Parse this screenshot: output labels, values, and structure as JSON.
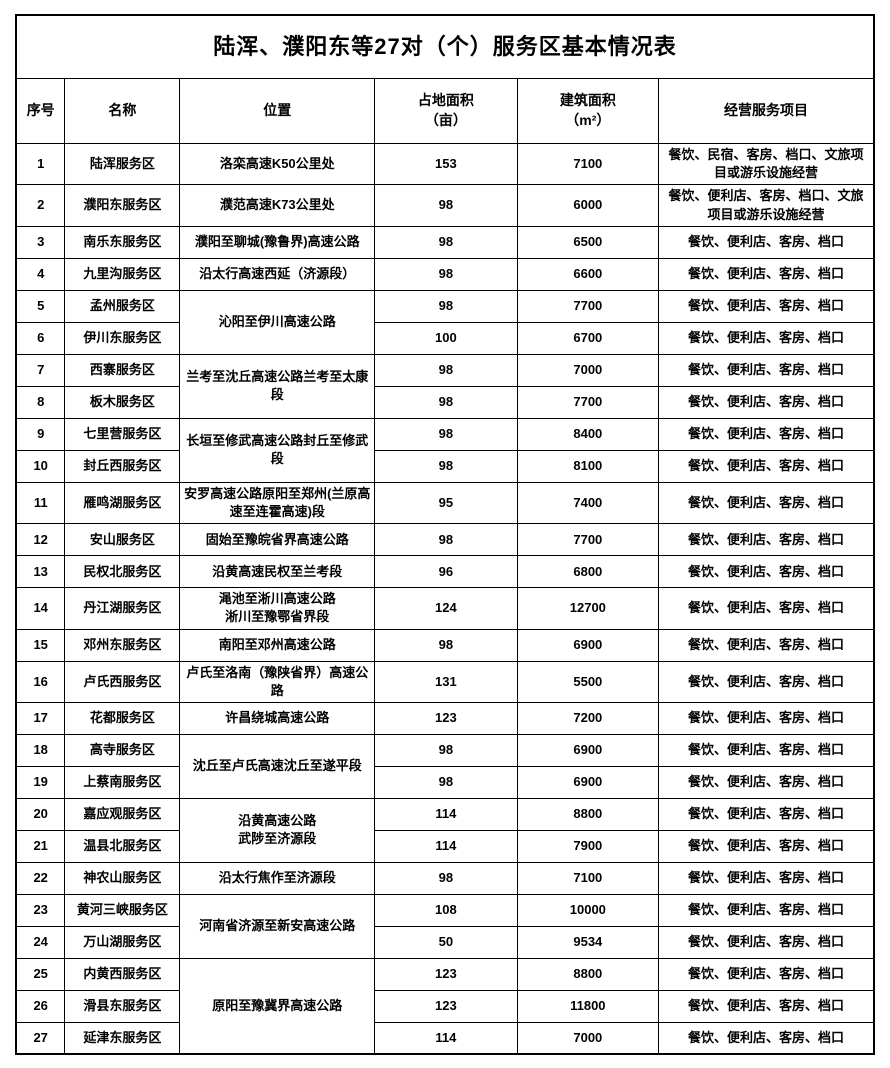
{
  "table": {
    "title": "陆浑、濮阳东等27对（个）服务区基本情况表",
    "headers": [
      "序号",
      "名称",
      "位置",
      "占地面积\n（亩）",
      "建筑面积\n（m²）",
      "经营服务项目"
    ],
    "rows": [
      {
        "no": "1",
        "name": "陆浑服务区",
        "location": "洛栾高速K50公里处",
        "location_rowspan": 1,
        "land": "153",
        "building": "7100",
        "services": "餐饮、民宿、客房、档口、文旅项目或游乐设施经营"
      },
      {
        "no": "2",
        "name": "濮阳东服务区",
        "location": "濮范高速K73公里处",
        "location_rowspan": 1,
        "land": "98",
        "building": "6000",
        "services": "餐饮、便利店、客房、档口、文旅项目或游乐设施经营"
      },
      {
        "no": "3",
        "name": "南乐东服务区",
        "location": "濮阳至聊城(豫鲁界)高速公路",
        "location_rowspan": 1,
        "land": "98",
        "building": "6500",
        "services": "餐饮、便利店、客房、档口"
      },
      {
        "no": "4",
        "name": "九里沟服务区",
        "location": "沿太行高速西延（济源段）",
        "location_rowspan": 1,
        "land": "98",
        "building": "6600",
        "services": "餐饮、便利店、客房、档口"
      },
      {
        "no": "5",
        "name": "孟州服务区",
        "location": "沁阳至伊川高速公路",
        "location_rowspan": 2,
        "land": "98",
        "building": "7700",
        "services": "餐饮、便利店、客房、档口"
      },
      {
        "no": "6",
        "name": "伊川东服务区",
        "location": null,
        "land": "100",
        "building": "6700",
        "services": "餐饮、便利店、客房、档口"
      },
      {
        "no": "7",
        "name": "西寨服务区",
        "location": "兰考至沈丘高速公路兰考至太康段",
        "location_rowspan": 2,
        "land": "98",
        "building": "7000",
        "services": "餐饮、便利店、客房、档口"
      },
      {
        "no": "8",
        "name": "板木服务区",
        "location": null,
        "land": "98",
        "building": "7700",
        "services": "餐饮、便利店、客房、档口"
      },
      {
        "no": "9",
        "name": "七里营服务区",
        "location": "长垣至修武高速公路封丘至修武段",
        "location_rowspan": 2,
        "land": "98",
        "building": "8400",
        "services": "餐饮、便利店、客房、档口"
      },
      {
        "no": "10",
        "name": "封丘西服务区",
        "location": null,
        "land": "98",
        "building": "8100",
        "services": "餐饮、便利店、客房、档口"
      },
      {
        "no": "11",
        "name": "雁鸣湖服务区",
        "location": "安罗高速公路原阳至郑州(兰原高速至连霍高速)段",
        "location_rowspan": 1,
        "land": "95",
        "building": "7400",
        "services": "餐饮、便利店、客房、档口"
      },
      {
        "no": "12",
        "name": "安山服务区",
        "location": "固始至豫皖省界高速公路",
        "location_rowspan": 1,
        "land": "98",
        "building": "7700",
        "services": "餐饮、便利店、客房、档口"
      },
      {
        "no": "13",
        "name": "民权北服务区",
        "location": "沿黄高速民权至兰考段",
        "location_rowspan": 1,
        "land": "96",
        "building": "6800",
        "services": "餐饮、便利店、客房、档口"
      },
      {
        "no": "14",
        "name": "丹江湖服务区",
        "location": "渑池至淅川高速公路\n淅川至豫鄂省界段",
        "location_rowspan": 1,
        "land": "124",
        "building": "12700",
        "services": "餐饮、便利店、客房、档口"
      },
      {
        "no": "15",
        "name": "邓州东服务区",
        "location": "南阳至邓州高速公路",
        "location_rowspan": 1,
        "land": "98",
        "building": "6900",
        "services": "餐饮、便利店、客房、档口"
      },
      {
        "no": "16",
        "name": "卢氏西服务区",
        "location": "卢氏至洛南（豫陕省界）高速公路",
        "location_rowspan": 1,
        "land": "131",
        "building": "5500",
        "services": "餐饮、便利店、客房、档口"
      },
      {
        "no": "17",
        "name": "花都服务区",
        "location": "许昌绕城高速公路",
        "location_rowspan": 1,
        "land": "123",
        "building": "7200",
        "services": "餐饮、便利店、客房、档口"
      },
      {
        "no": "18",
        "name": "高寺服务区",
        "location": "沈丘至卢氏高速沈丘至遂平段",
        "location_rowspan": 2,
        "land": "98",
        "building": "6900",
        "services": "餐饮、便利店、客房、档口"
      },
      {
        "no": "19",
        "name": "上蔡南服务区",
        "location": null,
        "land": "98",
        "building": "6900",
        "services": "餐饮、便利店、客房、档口"
      },
      {
        "no": "20",
        "name": "嘉应观服务区",
        "location": "沿黄高速公路\n武陟至济源段",
        "location_rowspan": 2,
        "land": "114",
        "building": "8800",
        "services": "餐饮、便利店、客房、档口"
      },
      {
        "no": "21",
        "name": "温县北服务区",
        "location": null,
        "land": "114",
        "building": "7900",
        "services": "餐饮、便利店、客房、档口"
      },
      {
        "no": "22",
        "name": "神农山服务区",
        "location": "沿太行焦作至济源段",
        "location_rowspan": 1,
        "land": "98",
        "building": "7100",
        "services": "餐饮、便利店、客房、档口"
      },
      {
        "no": "23",
        "name": "黄河三峡服务区",
        "location": "河南省济源至新安高速公路",
        "location_rowspan": 2,
        "land": "108",
        "building": "10000",
        "services": "餐饮、便利店、客房、档口"
      },
      {
        "no": "24",
        "name": "万山湖服务区",
        "location": null,
        "land": "50",
        "building": "9534",
        "services": "餐饮、便利店、客房、档口"
      },
      {
        "no": "25",
        "name": "内黄西服务区",
        "location": "原阳至豫冀界高速公路",
        "location_rowspan": 3,
        "land": "123",
        "building": "8800",
        "services": "餐饮、便利店、客房、档口"
      },
      {
        "no": "26",
        "name": "滑县东服务区",
        "location": null,
        "land": "123",
        "building": "11800",
        "services": "餐饮、便利店、客房、档口"
      },
      {
        "no": "27",
        "name": "延津东服务区",
        "location": null,
        "land": "114",
        "building": "7000",
        "services": "餐饮、便利店、客房、档口"
      }
    ]
  }
}
